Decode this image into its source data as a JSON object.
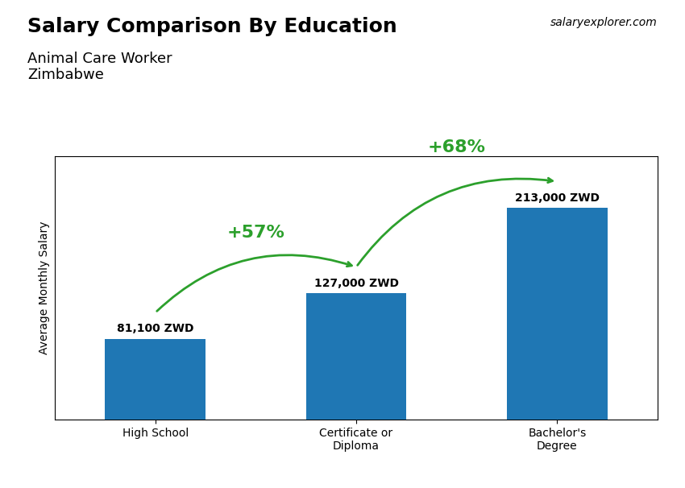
{
  "chart_data": {
    "type": "bar",
    "title": "Salary Comparison By Education",
    "subtitle": "Animal Care Worker\nZimbabwe",
    "y_label": "Average Monthly Salary",
    "categories": [
      "High School",
      "Certificate or\nDiploma",
      "Bachelor's\nDegree"
    ],
    "values": [
      81100,
      127000,
      213000
    ],
    "value_labels": [
      "81,100 ZWD",
      "127,000 ZWD",
      "213,000 ZWD"
    ],
    "data_labels": true,
    "ylim": [
      0,
      265000
    ],
    "tick_labels": "x",
    "grid": false,
    "annotations": [
      {
        "text": "+57%",
        "from": "High School",
        "to": "Certificate or\nDiploma"
      },
      {
        "text": "+68%",
        "from": "Certificate or\nDiploma",
        "to": "Bachelor's\nDegree"
      },
      {
        "text": "salaryexplorer.com"
      }
    ]
  }
}
